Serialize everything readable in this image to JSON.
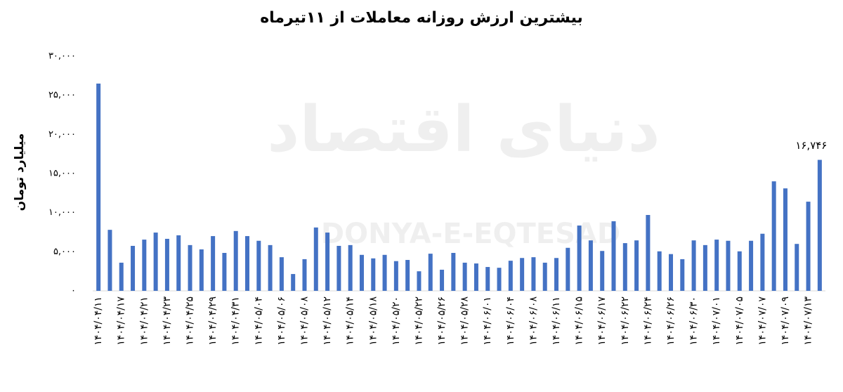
{
  "chart_data": {
    "type": "bar",
    "title": "بیشترین ارزش روزانه معاملات از ۱۱تیرماه",
    "y_label": "میلیارد تومان",
    "watermark": "دنیای اقتصاد",
    "watermark_latin": "DONYA-E-EQTESAD",
    "color": "#4472c4",
    "categories": [
      "۱۴۰۴/۰۴/۱۱",
      null,
      "۱۴۰۴/۰۴/۱۷",
      null,
      "۱۴۰۴/۰۴/۲۱",
      null,
      "۱۴۰۴/۰۴/۲۳",
      null,
      "۱۴۰۴/۰۴/۲۵",
      null,
      "۱۴۰۴/۰۴/۲۹",
      null,
      "۱۴۰۴/۰۴/۳۱",
      null,
      "۱۴۰۴/۰۵/۰۴",
      null,
      "۱۴۰۴/۰۵/۰۶",
      null,
      "۱۴۰۴/۰۵/۰۸",
      null,
      "۱۴۰۴/۰۵/۱۲",
      null,
      "۱۴۰۴/۰۵/۱۴",
      null,
      "۱۴۰۴/۰۵/۱۸",
      null,
      "۱۴۰۴/۰۵/۲۰",
      null,
      "۱۴۰۴/۰۵/۲۲",
      null,
      "۱۴۰۴/۰۵/۲۶",
      null,
      "۱۴۰۴/۰۵/۲۸",
      null,
      "۱۴۰۴/۰۶/۰۱",
      null,
      "۱۴۰۴/۰۶/۰۴",
      null,
      "۱۴۰۴/۰۶/۰۸",
      null,
      "۱۴۰۴/۰۶/۱۱",
      null,
      "۱۴۰۴/۰۶/۱۵",
      null,
      "۱۴۰۴/۰۶/۱۷",
      null,
      "۱۴۰۴/۰۶/۲۲",
      null,
      "۱۴۰۴/۰۶/۲۴",
      null,
      "۱۴۰۴/۰۶/۲۶",
      null,
      "۱۴۰۴/۰۶/۳۰",
      null,
      "۱۴۰۴/۰۷/۰۱",
      null,
      "۱۴۰۴/۰۷/۰۵",
      null,
      "۱۴۰۴/۰۷/۰۷",
      null,
      "۱۴۰۴/۰۷/۰۹",
      null,
      "۱۴۰۴/۰۷/۱۳",
      null
    ],
    "values": [
      26500,
      7800,
      3600,
      5750,
      6550,
      7450,
      6650,
      7100,
      5850,
      5300,
      7000,
      4850,
      7650,
      7000,
      6400,
      5850,
      4300,
      2150,
      4050,
      8100,
      7450,
      5750,
      5850,
      4600,
      4150,
      4600,
      3800,
      3950,
      2500,
      4750,
      2700,
      4850,
      3600,
      3500,
      3050,
      2950,
      3850,
      4200,
      4300,
      3600,
      4200,
      5500,
      8350,
      6450,
      5100,
      8900,
      6100,
      6450,
      9700,
      5050,
      4700,
      4050,
      6450,
      5850,
      6550,
      6400,
      5050,
      6400,
      7300,
      14000,
      13100,
      6000,
      11400,
      16746
    ],
    "value_labels": [
      null,
      null,
      null,
      null,
      null,
      null,
      null,
      null,
      null,
      null,
      null,
      null,
      null,
      null,
      null,
      null,
      null,
      null,
      null,
      null,
      null,
      null,
      null,
      null,
      null,
      null,
      null,
      null,
      null,
      null,
      null,
      null,
      null,
      null,
      null,
      null,
      null,
      null,
      null,
      null,
      null,
      null,
      null,
      null,
      null,
      null,
      null,
      null,
      null,
      null,
      null,
      null,
      null,
      null,
      null,
      null,
      null,
      null,
      null,
      null,
      null,
      null,
      null,
      "۱۶,۷۴۶"
    ],
    "ylim": [
      0,
      30000
    ],
    "yticks": [
      {
        "value": 0,
        "label": "۰"
      },
      {
        "value": 5000,
        "label": "۵,۰۰۰"
      },
      {
        "value": 10000,
        "label": "۱۰,۰۰۰"
      },
      {
        "value": 15000,
        "label": "۱۵,۰۰۰"
      },
      {
        "value": 20000,
        "label": "۲۰,۰۰۰"
      },
      {
        "value": 25000,
        "label": "۲۵,۰۰۰"
      },
      {
        "value": 30000,
        "label": "۳۰,۰۰۰"
      }
    ],
    "grid": false
  }
}
